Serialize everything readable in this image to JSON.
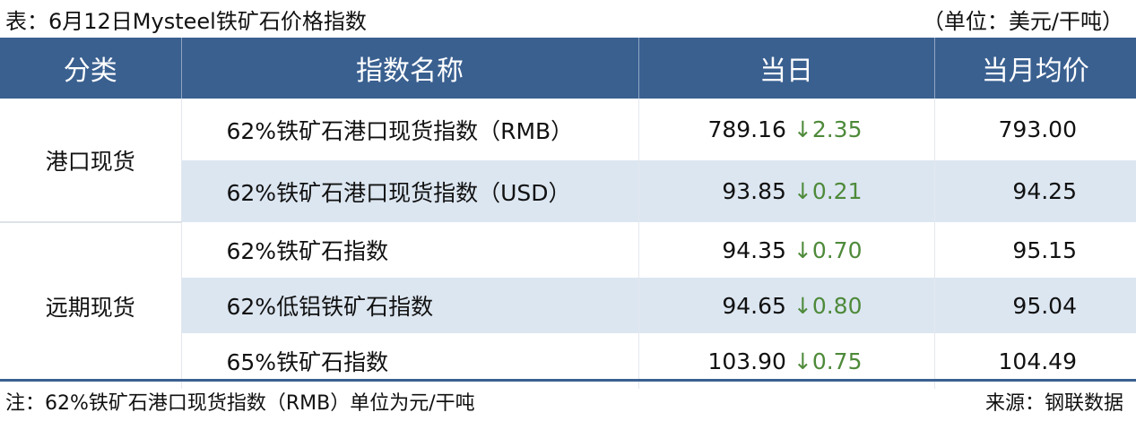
{
  "title": "表：6月12日Mysteel铁矿石价格指数",
  "unit": "（单位：美元/干吨）",
  "headers": [
    "分类",
    "指数名称",
    "当日",
    "当月均价"
  ],
  "groups": [
    {
      "category": "港口现货"
    },
    {
      "category": "远期现货"
    }
  ],
  "rows": [
    {
      "name": "62%铁矿石港口现货指数（RMB）",
      "value": "789.16",
      "arrow": "↓",
      "change": "2.35",
      "avg": "793.00"
    },
    {
      "name": "62%铁矿石港口现货指数（USD）",
      "value": "93.85",
      "arrow": "↓",
      "change": "0.21",
      "avg": "94.25"
    },
    {
      "name": "62%铁矿石指数",
      "value": "94.35",
      "arrow": "↓",
      "change": "0.70",
      "avg": "95.15"
    },
    {
      "name": "62%低铝铁矿石指数",
      "value": "94.65",
      "arrow": "↓",
      "change": "0.80",
      "avg": "95.04"
    },
    {
      "name": "65%铁矿石指数",
      "value": "103.90",
      "arrow": "↓",
      "change": "0.75",
      "avg": "104.49"
    }
  ],
  "note": "注：62%铁矿石港口现货指数（RMB）单位为元/干吨",
  "source": "来源：钢联数据",
  "colors": {
    "header": "#3A6090",
    "band": "#DCE6F1",
    "down": "#4E8A3A"
  }
}
